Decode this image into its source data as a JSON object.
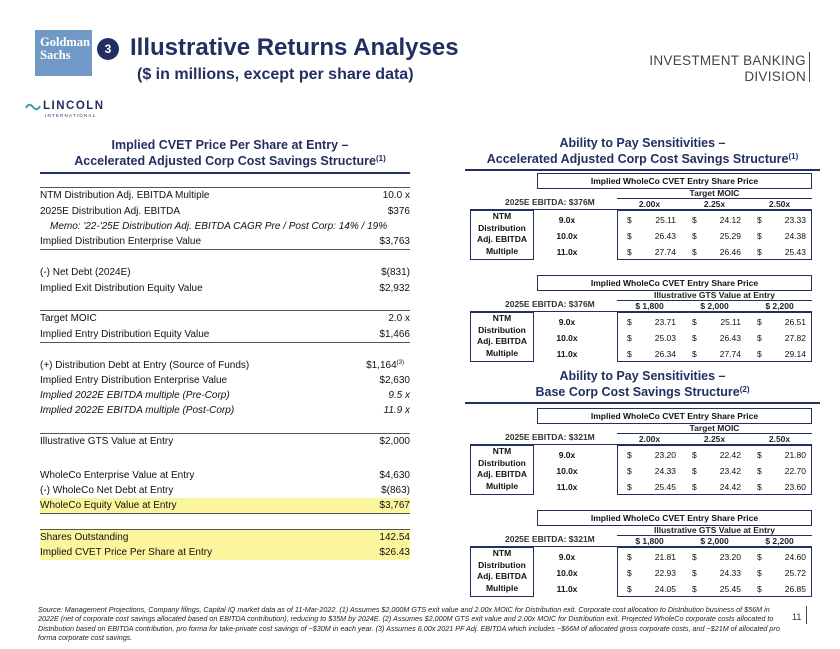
{
  "header": {
    "logo_line1": "Goldman",
    "logo_line2": "Sachs",
    "section_number": "3",
    "title": "Illustrative Returns Analyses",
    "subtitle": "($ in millions, except per share data)",
    "division_line1": "INVESTMENT BANKING",
    "division_line2": "DIVISION",
    "lincoln_name": "LINCOLN",
    "lincoln_sub": "INTERNATIONAL"
  },
  "left": {
    "heading_line1": "Implied CVET Price Per Share at Entry –",
    "heading_line2": "Accelerated Adjusted Corp Cost Savings Structure",
    "heading_sup": "(1)",
    "rows": [
      {
        "label": "NTM Distribution Adj. EBITDA Multiple",
        "value": "10.0 x"
      },
      {
        "label": "2025E Distribution Adj. EBITDA",
        "value": "$376"
      },
      {
        "label": "Memo: '22-'25E Distribution Adj. EBITDA CAGR Pre / Post Corp: 14% / 19%",
        "value": ""
      },
      {
        "label": "Implied Distribution Enterprise Value",
        "value": "$3,763"
      },
      {
        "label": "(-) Net Debt (2024E)",
        "value": "$(831)"
      },
      {
        "label": "Implied Exit Distribution Equity Value",
        "value": "$2,932"
      },
      {
        "label": "Target MOIC",
        "value": "2.0 x"
      },
      {
        "label": "Implied Entry Distribution Equity Value",
        "value": "$1,466"
      },
      {
        "label": "(+) Distribution Debt at Entry (Source of Funds)",
        "value": "$1,164",
        "sup": "(3)"
      },
      {
        "label": "Implied Entry Distribution Enterprise Value",
        "value": "$2,630"
      },
      {
        "label": "Implied 2022E EBITDA multiple (Pre-Corp)",
        "value": "9.5 x"
      },
      {
        "label": "Implied 2022E EBITDA multiple (Post-Corp)",
        "value": "11.9 x"
      },
      {
        "label": "Illustrative GTS Value at Entry",
        "value": "$2,000"
      },
      {
        "label": "WholeCo Enterprise Value at Entry",
        "value": "$4,630"
      },
      {
        "label": "(-) WholeCo Net Debt at Entry",
        "value": "$(863)"
      },
      {
        "label": "WholeCo Equity Value at Entry",
        "value": "$3,767"
      },
      {
        "label": "Shares Outstanding",
        "value": "142.54"
      },
      {
        "label": "Implied CVET Price Per Share at Entry",
        "value": "$26.43"
      }
    ]
  },
  "right": {
    "heading1_line1": "Ability to Pay Sensitivities –",
    "heading1_line2": "Accelerated Adjusted Corp Cost Savings Structure",
    "heading1_sup": "(1)",
    "heading2_line1": "Ability to Pay Sensitivities –",
    "heading2_line2": "Base Corp Cost Savings Structure",
    "heading2_sup": "(2)",
    "side_label": [
      "NTM",
      "Distribution",
      "Adj. EBITDA",
      "Multiple"
    ],
    "multiples": [
      "9.0x",
      "10.0x",
      "11.0x"
    ],
    "blocks": [
      {
        "banner": "Implied WholeCo CVET Entry Share Price",
        "ebitda": "2025E EBITDA: $376M",
        "header_title": "Target MOIC",
        "columns": [
          "2.00x",
          "2.25x",
          "2.50x"
        ],
        "cells": [
          [
            "25.11",
            "24.12",
            "23.33"
          ],
          [
            "26.43",
            "25.29",
            "24.38"
          ],
          [
            "27.74",
            "26.46",
            "25.43"
          ]
        ]
      },
      {
        "banner": "Implied WholeCo CVET Entry Share Price",
        "ebitda": "2025E EBITDA: $376M",
        "header_title": "Illustrative GTS Value at Entry",
        "columns": [
          "$ 1,800",
          "$ 2,000",
          "$ 2,200"
        ],
        "cells": [
          [
            "23.71",
            "25.11",
            "26.51"
          ],
          [
            "25.03",
            "26.43",
            "27.82"
          ],
          [
            "26.34",
            "27.74",
            "29.14"
          ]
        ]
      },
      {
        "banner": "Implied WholeCo CVET Entry Share Price",
        "ebitda": "2025E EBITDA: $321M",
        "header_title": "Target MOIC",
        "columns": [
          "2.00x",
          "2.25x",
          "2.50x"
        ],
        "cells": [
          [
            "23.20",
            "22.42",
            "21.80"
          ],
          [
            "24.33",
            "23.42",
            "22.70"
          ],
          [
            "25.45",
            "24.42",
            "23.60"
          ]
        ]
      },
      {
        "banner": "Implied WholeCo CVET Entry Share Price",
        "ebitda": "2025E EBITDA: $321M",
        "header_title": "Illustrative GTS Value at Entry",
        "columns": [
          "$ 1,800",
          "$ 2,000",
          "$ 2,200"
        ],
        "cells": [
          [
            "21.81",
            "23.20",
            "24.60"
          ],
          [
            "22.93",
            "24.33",
            "25.72"
          ],
          [
            "24.05",
            "25.45",
            "26.85"
          ]
        ]
      }
    ],
    "currency": "$"
  },
  "footer": {
    "note": "Source: Management Projections, Company filings, Capital IQ market data as of 11-Mar-2022. (1) Assumes $2,000M GTS exit value and 2.00x MOIC for Distribution exit. Corporate cost allocation to Distribution business of $56M in 2022E (net of corporate cost savings allocated based on EBITDA contribution), reducing to $35M by 2024E. (2) Assumes $2,000M GTS exit value and 2.00x MOIC for Distribution exit. Projected WholeCo corporate costs allocated to Distribution based on EBITDA contribution, pro forma for take-private cost savings of ~$30M in each year. (3) Assumes 6.00x 2021 PF Adj. EBITDA which includes ~$66M of allocated gross corporate costs, and ~$21M of allocated pro forma corporate cost savings.",
    "page": "11"
  }
}
